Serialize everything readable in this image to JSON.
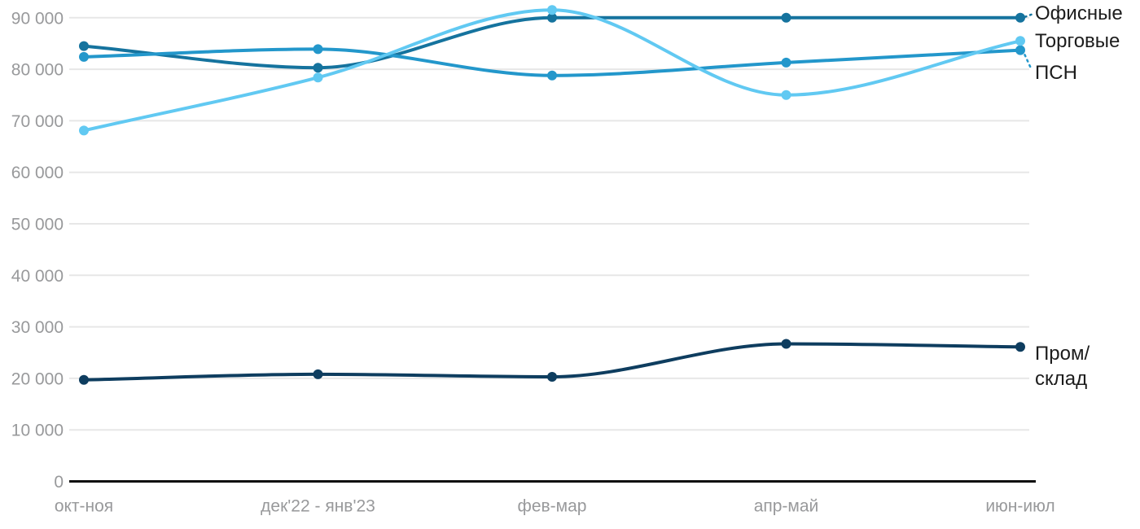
{
  "chart_data": {
    "type": "line",
    "title": "",
    "xlabel": "",
    "ylabel": "",
    "categories": [
      "окт-ноя",
      "дек'22 - янв'23",
      "фев-мар",
      "апр-май",
      "июн-июл"
    ],
    "series": [
      {
        "name": "Офисные",
        "color": "#15739e",
        "values": [
          84500,
          80300,
          90000,
          90000,
          90000
        ],
        "label_lines": [
          "Офисные"
        ],
        "leader_line": true
      },
      {
        "name": "Торговые",
        "color": "#61c9f2",
        "values": [
          68100,
          78400,
          91500,
          75000,
          85500
        ],
        "label_lines": [
          "Торговые"
        ],
        "leader_line": false
      },
      {
        "name": "ПСН",
        "color": "#2397cb",
        "values": [
          82400,
          83900,
          78800,
          81300,
          83700
        ],
        "label_lines": [
          "ПСН"
        ],
        "leader_line": true
      },
      {
        "name": "Пром/склад",
        "color": "#0e3d5f",
        "values": [
          19700,
          20800,
          20300,
          26700,
          26100
        ],
        "label_lines": [
          "Пром/",
          "склад"
        ],
        "leader_line": false
      }
    ],
    "y_tick_values": [
      0,
      10000,
      20000,
      30000,
      40000,
      50000,
      60000,
      70000,
      80000,
      90000
    ],
    "y_tick_labels": [
      "0",
      "10 000",
      "20 000",
      "30 000",
      "40 000",
      "50 000",
      "60 000",
      "70 000",
      "80 000",
      "90 000"
    ],
    "ylim": [
      0,
      90000
    ],
    "grid": true,
    "legend_position": "right-inline",
    "colors": {
      "background": "#ffffff",
      "gridline": "#e7e7e7",
      "axis_line": "#0d0d0d",
      "tick_label": "#98999b",
      "series_label": "#1c1c1c"
    }
  }
}
